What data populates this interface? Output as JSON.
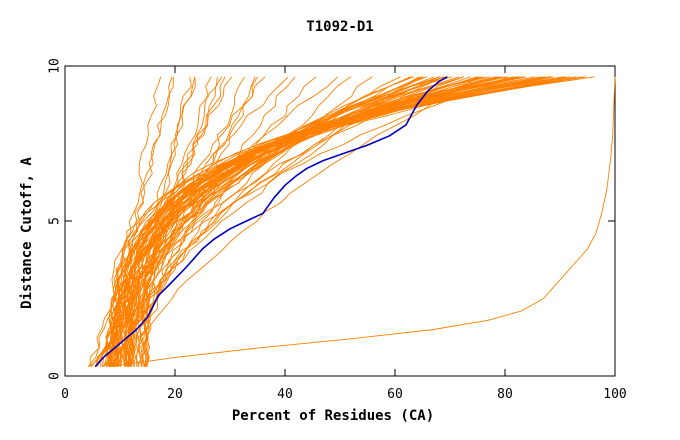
{
  "chart_data": {
    "type": "line",
    "title": "T1092-D1",
    "xlabel": "Percent of Residues (CA)",
    "ylabel": "Distance Cutoff, A",
    "xlim": [
      0,
      100
    ],
    "ylim": [
      0,
      10
    ],
    "x_ticks": [
      0,
      20,
      40,
      60,
      80,
      100
    ],
    "y_ticks": [
      0,
      5,
      10
    ],
    "grid": false,
    "legend": "none",
    "colors": {
      "highlight": "#0000c0",
      "others": "#ff8000"
    },
    "highlight_series": {
      "x": [
        5.5,
        7,
        9,
        11,
        13,
        15,
        17,
        19,
        22,
        25,
        27,
        30,
        33,
        36,
        38,
        40,
        42,
        44,
        47,
        51,
        55,
        59,
        62,
        64,
        66,
        68,
        69.5
      ],
      "y": [
        0.3,
        0.6,
        0.9,
        1.2,
        1.5,
        1.9,
        2.6,
        2.95,
        3.5,
        4.1,
        4.4,
        4.75,
        5.0,
        5.25,
        5.75,
        6.15,
        6.45,
        6.7,
        6.95,
        7.2,
        7.45,
        7.75,
        8.1,
        8.75,
        9.2,
        9.5,
        9.65
      ]
    },
    "series_groups": [
      {
        "kind": "steep",
        "count": 14,
        "x_start": [
          4.2,
          8.5
        ],
        "x_end": [
          17,
          36
        ]
      },
      {
        "kind": "mid",
        "count": 14,
        "x_start": [
          7,
          14
        ],
        "x_end": [
          36,
          80
        ]
      },
      {
        "kind": "late",
        "count": 52,
        "x_start": [
          8,
          15
        ],
        "x_end": [
          63,
          95
        ]
      }
    ],
    "outlier_series": {
      "x": [
        8,
        20,
        35,
        52,
        67,
        77,
        83,
        87,
        89,
        92,
        95,
        96.5,
        97.5,
        98.5,
        99.2,
        99.6,
        99.8,
        100
      ],
      "y": [
        0.3,
        0.6,
        0.9,
        1.2,
        1.5,
        1.8,
        2.1,
        2.5,
        2.9,
        3.5,
        4.1,
        4.6,
        5.2,
        6.0,
        7.0,
        7.8,
        8.8,
        9.65
      ]
    }
  }
}
